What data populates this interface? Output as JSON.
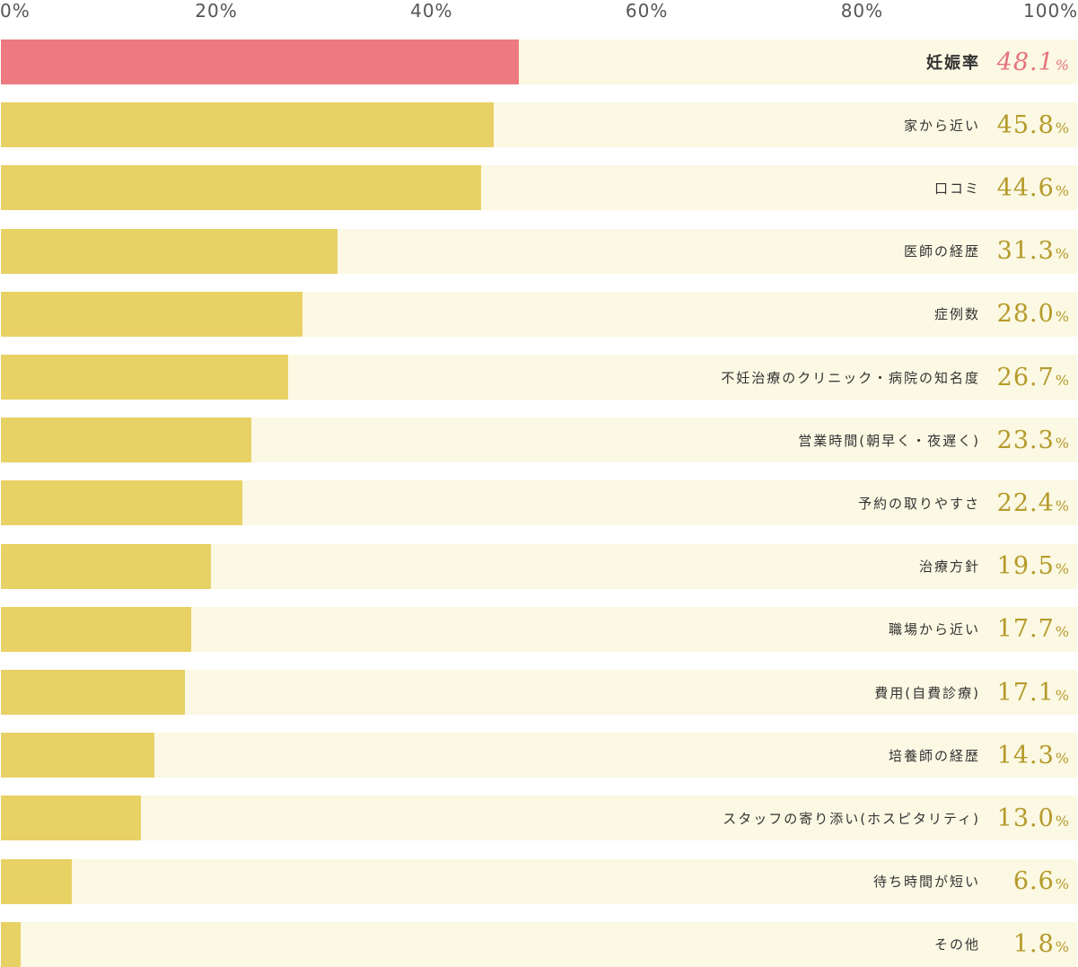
{
  "chart_data": {
    "type": "bar",
    "orientation": "horizontal",
    "x_ticks": [
      "0%",
      "20%",
      "40%",
      "60%",
      "80%",
      "100%"
    ],
    "xlim": [
      0,
      100
    ],
    "unit": "%",
    "categories": [
      "妊娠率",
      "家から近い",
      "口コミ",
      "医師の経歴",
      "症例数",
      "不妊治療のクリニック・病院の知名度",
      "営業時間(朝早く・夜遅く)",
      "予約の取りやすさ",
      "治療方針",
      "職場から近い",
      "費用(自費診療)",
      "培養師の経歴",
      "スタッフの寄り添い(ホスピタリティ)",
      "待ち時間が短い",
      "その他"
    ],
    "values": [
      48.1,
      45.8,
      44.6,
      31.3,
      28.0,
      26.7,
      23.3,
      22.4,
      19.5,
      17.7,
      17.1,
      14.3,
      13.0,
      6.6,
      1.8
    ],
    "value_labels": [
      "48.1",
      "45.8",
      "44.6",
      "31.3",
      "28.0",
      "26.7",
      "23.3",
      "22.4",
      "19.5",
      "17.7",
      "17.1",
      "14.3",
      "13.0",
      "6.6",
      "1.8"
    ],
    "highlight_index": 0,
    "colors": {
      "bar": "#e8d165",
      "highlight_bar": "#ec7a80",
      "track": "#fbf8e3",
      "value_text": "#b59a2a",
      "highlight_value_text": "#e5737b"
    },
    "grid": false,
    "legend": "none"
  }
}
